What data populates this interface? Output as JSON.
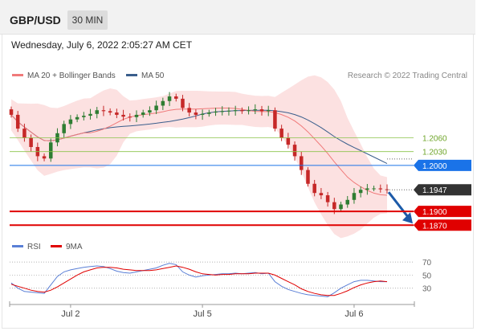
{
  "header": {
    "pair": "GBP/USD",
    "timeframe": "30 MIN"
  },
  "date_label": "Wednesday, July 6, 2022 2:05:27 AM CET",
  "colors": {
    "up": "#2e7d32",
    "down": "#c62828",
    "bollinger_fill": "#fbdcdc",
    "ma20": "#f07a7a",
    "ma50": "#3a5e8c",
    "resistance": "#8bc34a",
    "current": "#1a73e8",
    "support": "#e00000",
    "price": "#333333",
    "arrow": "#1d5aa8",
    "rsi": "#5a7fd6",
    "rsi_ma": "#e00000"
  },
  "chart_data": [
    {
      "type": "line",
      "title": "",
      "legend": [
        {
          "name": "MA 20 + Bollinger Bands",
          "color": "#f07a7a"
        },
        {
          "name": "MA 50",
          "color": "#3a5e8c"
        }
      ],
      "credit": "Research © 2022 Trading Central",
      "ylim": [
        1.1853,
        1.2185
      ],
      "levels": [
        {
          "label": "1.2060",
          "value": 1.206,
          "kind": "resistance"
        },
        {
          "label": "1.2030",
          "value": 1.203,
          "kind": "resistance"
        },
        {
          "label": "1.2000",
          "value": 1.2,
          "kind": "current"
        },
        {
          "label": "1.1947",
          "value": 1.1947,
          "kind": "price"
        },
        {
          "label": "1.1900",
          "value": 1.19,
          "kind": "support"
        },
        {
          "label": "1.1870",
          "value": 1.187,
          "kind": "support"
        }
      ],
      "series": [
        {
          "name": "GBP/USD close",
          "values": [
            1.211,
            1.208,
            1.206,
            1.204,
            1.202,
            1.2015,
            1.205,
            1.207,
            1.209,
            1.21,
            1.2105,
            1.2108,
            1.2112,
            1.212,
            1.2118,
            1.2115,
            1.211,
            1.2106,
            1.2105,
            1.211,
            1.2115,
            1.212,
            1.213,
            1.214,
            1.215,
            1.2145,
            1.2125,
            1.2115,
            1.211,
            1.2112,
            1.2115,
            1.2117,
            1.2118,
            1.2119,
            1.212,
            1.2118,
            1.212,
            1.2122,
            1.2118,
            1.212,
            1.208,
            1.206,
            1.2045,
            1.202,
            1.199,
            1.196,
            1.194,
            1.1935,
            1.192,
            1.1905,
            1.1915,
            1.1925,
            1.194,
            1.1947,
            1.195,
            1.195,
            1.1948,
            1.1947
          ]
        }
      ]
    },
    {
      "type": "line",
      "legend": [
        {
          "name": "RSI",
          "color": "#5a7fd6"
        },
        {
          "name": "9MA",
          "color": "#e00000"
        }
      ],
      "ylim": [
        10,
        80
      ],
      "yticks": [
        "70",
        "50",
        "30"
      ],
      "x_tick_labels": [
        "Jul 2",
        "Jul 5",
        "Jul 6"
      ],
      "series": [
        {
          "name": "RSI",
          "values": [
            38,
            30,
            25,
            24,
            23,
            22,
            35,
            48,
            55,
            58,
            60,
            62,
            63,
            64,
            63,
            60,
            56,
            54,
            53,
            55,
            57,
            59,
            61,
            65,
            68,
            66,
            55,
            50,
            47,
            49,
            50,
            51,
            52,
            52,
            53,
            52,
            53,
            54,
            52,
            53,
            40,
            33,
            28,
            25,
            22,
            20,
            19,
            18,
            17,
            23,
            30,
            35,
            40,
            42,
            42,
            41,
            40,
            40
          ]
        },
        {
          "name": "9MA",
          "values": [
            36,
            33,
            30,
            27,
            25,
            24,
            27,
            32,
            38,
            44,
            50,
            55,
            58,
            61,
            62,
            62,
            61,
            59,
            58,
            57,
            57,
            57,
            58,
            60,
            62,
            64,
            62,
            59,
            55,
            52,
            51,
            50,
            51,
            51,
            52,
            52,
            52,
            53,
            53,
            53,
            50,
            45,
            40,
            35,
            29,
            25,
            22,
            20,
            19,
            19,
            22,
            26,
            31,
            35,
            38,
            40,
            41,
            40
          ]
        }
      ]
    }
  ]
}
